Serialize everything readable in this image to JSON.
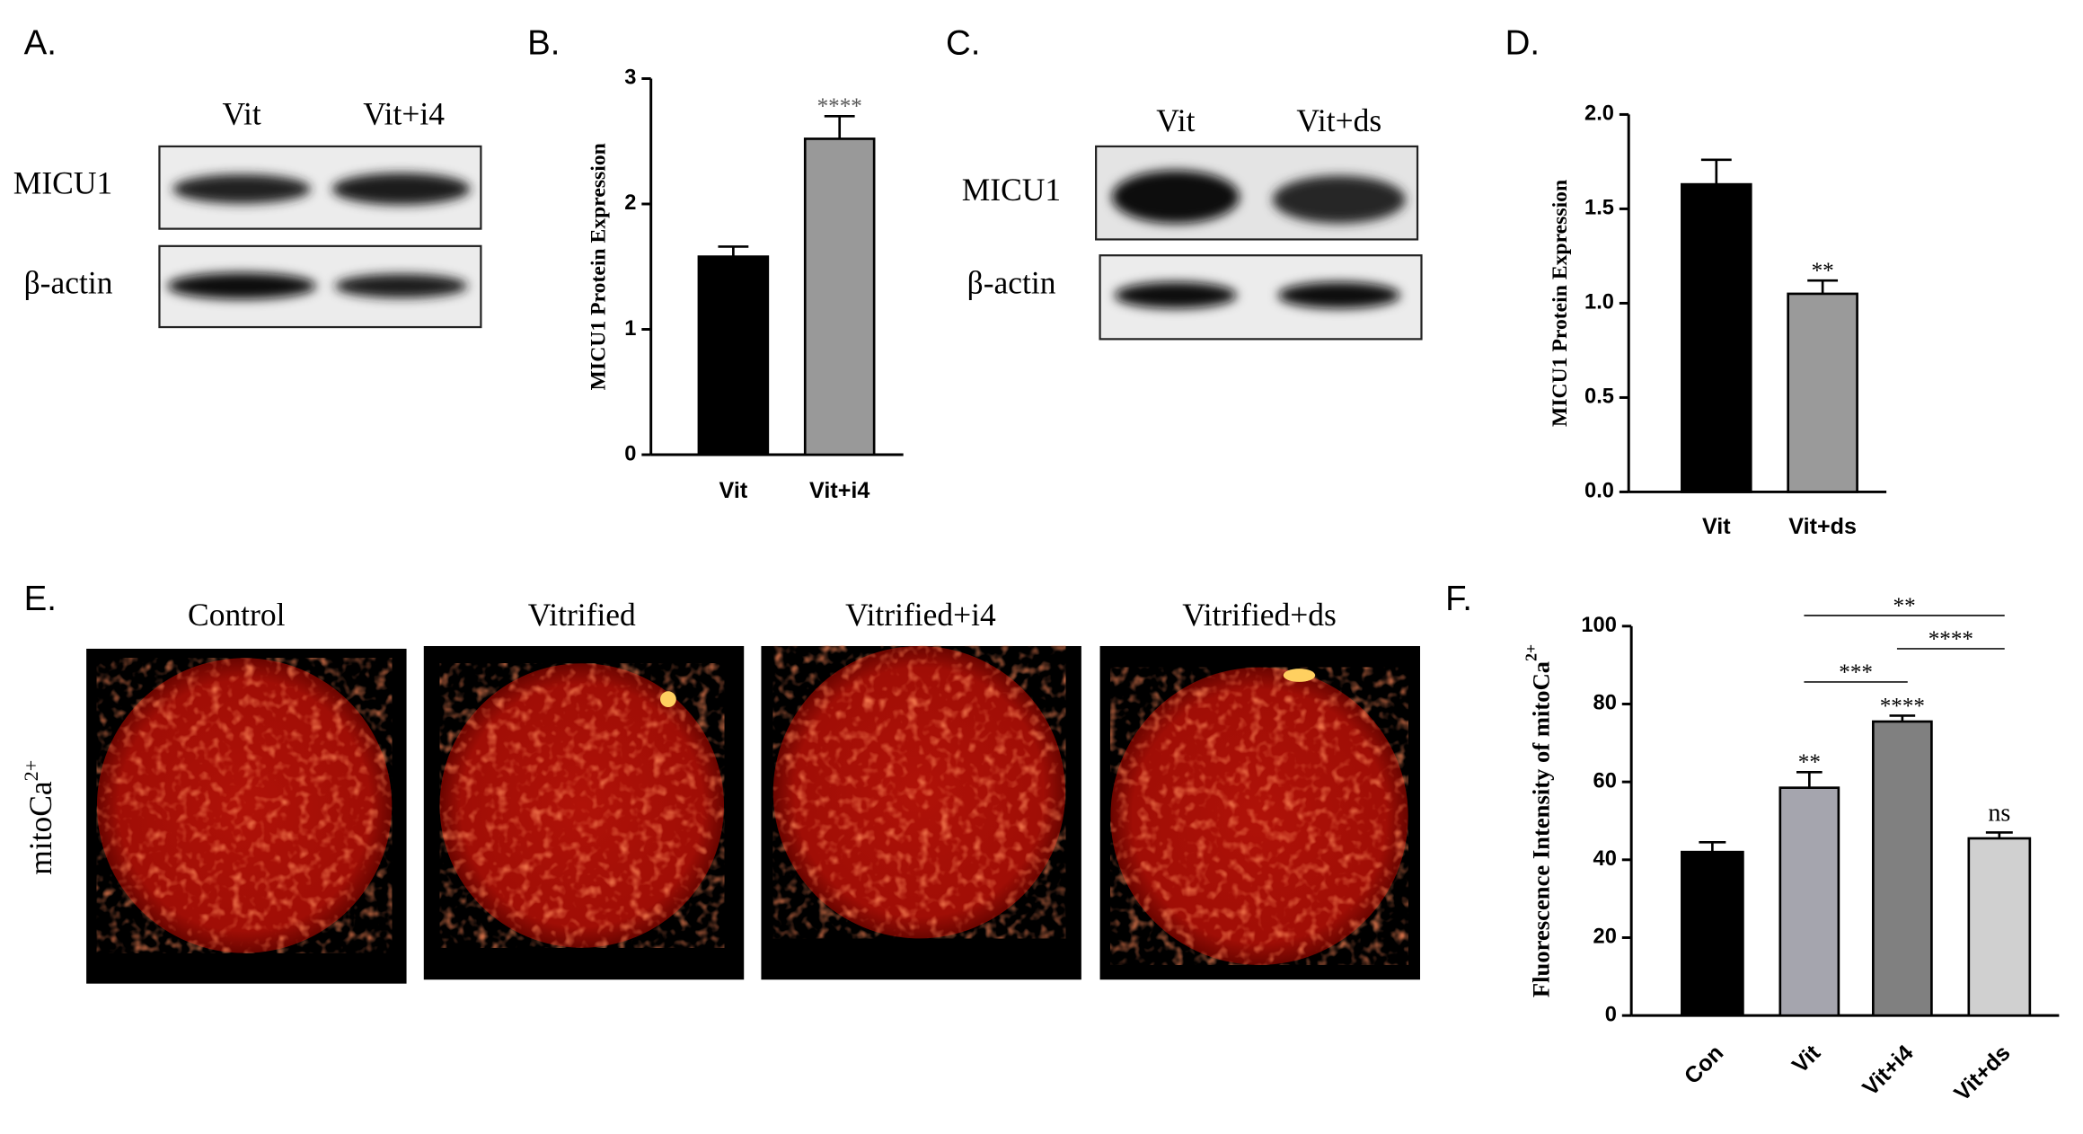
{
  "panel_labels": [
    "A.",
    "B.",
    "C.",
    "D.",
    "E.",
    "F."
  ],
  "blot_A": {
    "lanes": [
      "Vit",
      "Vit+i4"
    ],
    "rows": [
      "MICU1",
      "β-actin"
    ]
  },
  "blot_C": {
    "lanes": [
      "Vit",
      "Vit+ds"
    ],
    "rows": [
      "MICU1",
      "β-actin"
    ]
  },
  "imaging_E": {
    "conditions": [
      "Control",
      "Vitrified",
      "Vitrified+i4",
      "Vitrified+ds"
    ],
    "row_label": "mitoCa",
    "row_label_superscript": "2+"
  },
  "chart_data": [
    {
      "type": "bar",
      "y_label": "MICU1 Protein Expression",
      "categories": [
        "Vit",
        "Vit+i4"
      ],
      "values": [
        1.58,
        2.52
      ],
      "errors": [
        0.08,
        0.18
      ],
      "colors": [
        "#000000",
        "#999999"
      ],
      "significance": [
        null,
        "****"
      ],
      "ylim": [
        0,
        3
      ],
      "yticks": [
        0,
        1,
        2,
        3
      ]
    },
    {
      "type": "bar",
      "y_label": "MICU1 Protein Expression",
      "categories": [
        "Vit",
        "Vit+ds"
      ],
      "values": [
        1.63,
        1.05
      ],
      "errors": [
        0.13,
        0.07
      ],
      "colors": [
        "#000000",
        "#9a9a9a"
      ],
      "significance": [
        null,
        "**"
      ],
      "ylim": [
        0,
        2
      ],
      "yticks": [
        {
          "value": 0,
          "label": "0.0"
        },
        0.5,
        {
          "value": 1,
          "label": "1.0"
        },
        1.5,
        {
          "value": 2,
          "label": "2.0"
        }
      ]
    },
    {
      "type": "bar",
      "y_label": "Fluorescence Intensity of mitoCa",
      "y_label_superscript": "2+",
      "categories": [
        "Con",
        "Vit",
        "Vit+i4",
        "Vit+ds"
      ],
      "values": [
        42,
        58.5,
        75.5,
        45.5
      ],
      "errors": [
        2.5,
        4,
        1.5,
        1.5
      ],
      "colors": [
        "#000000",
        "#a5a5ae",
        "#808080",
        "#d0d0d0"
      ],
      "significance": [
        null,
        "**",
        "****",
        "ns"
      ],
      "comparisons": [
        {
          "groups": [
            "Vit",
            "Vit+ds"
          ],
          "label": "**"
        },
        {
          "groups": [
            "Vit+i4",
            "Vit+ds"
          ],
          "label": "****"
        },
        {
          "groups": [
            "Vit",
            "Vit+i4"
          ],
          "label": "***"
        }
      ],
      "ylim": [
        0,
        100
      ],
      "yticks": [
        0,
        20,
        40,
        60,
        80,
        100
      ]
    }
  ]
}
